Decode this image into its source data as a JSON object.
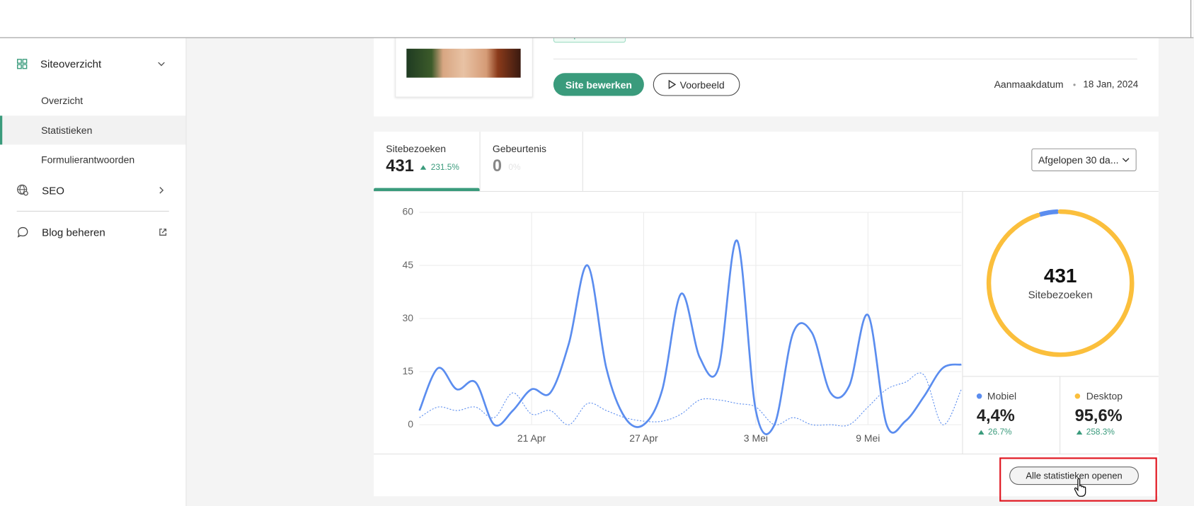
{
  "sidebar": {
    "items": [
      "Siteoverzicht",
      "Overzicht",
      "Statistieken",
      "Formulierantwoorden",
      "SEO",
      "Blog beheren"
    ]
  },
  "site": {
    "status": "Gepubliceerd",
    "edit_button": "Site bewerken",
    "preview_button": "Voorbeeld",
    "created_label": "Aanmaakdatum",
    "created_date": "18 Jan, 2024"
  },
  "tabs": [
    {
      "label": "Sitebezoeken",
      "value": 431,
      "change": "231.5%"
    },
    {
      "label": "Gebeurtenis",
      "value": 0,
      "change": "0%"
    }
  ],
  "period_select": "Afgelopen 30 da...",
  "chart_data": [
    {
      "type": "line",
      "categories": [
        null,
        null,
        null,
        null,
        null,
        null,
        "21 Apr",
        null,
        null,
        null,
        null,
        null,
        "27 Apr",
        null,
        null,
        null,
        null,
        null,
        "3 Mei",
        null,
        null,
        null,
        null,
        null,
        "9 Mei",
        null,
        null,
        null,
        null,
        null
      ],
      "series": [
        {
          "color": "#5b8def",
          "style": "solid",
          "values": [
            4,
            16,
            10,
            12,
            0,
            4,
            10,
            9,
            23,
            45,
            16,
            2,
            0,
            10,
            37,
            19,
            16,
            52,
            4,
            0,
            26,
            26,
            9,
            11,
            31,
            0,
            1,
            8,
            16,
            17
          ]
        },
        {
          "color": "#5b8def",
          "style": "dotted",
          "values": [
            2,
            5,
            4,
            5,
            2,
            9,
            3,
            4,
            0,
            6,
            4,
            2,
            1,
            1,
            3,
            7,
            7,
            6,
            5,
            0,
            2,
            0,
            0,
            0,
            5,
            10,
            12,
            14,
            0,
            10
          ]
        }
      ],
      "ylim": [
        0,
        60
      ],
      "yticks": [
        0,
        15,
        30,
        45,
        60
      ],
      "grid": true
    },
    {
      "type": "pie",
      "center_value": 431,
      "center_label": "Sitebezoeken",
      "categories": [
        "Mobiel",
        "Desktop"
      ],
      "values": [
        4.4,
        95.6
      ],
      "value_labels": [
        "4,4%",
        "95,6%"
      ],
      "changes": [
        "26.7%",
        "258.3%"
      ],
      "colors": [
        "#5b8def",
        "#fbbf3c"
      ]
    }
  ],
  "footer_button": "Alle statistieken openen"
}
